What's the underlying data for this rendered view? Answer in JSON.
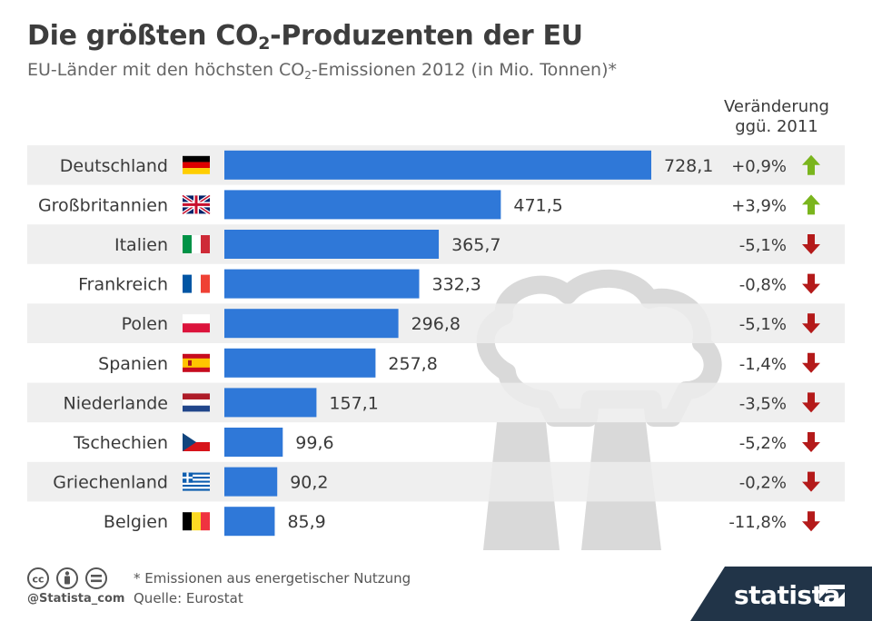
{
  "title_main": "Die größten CO",
  "title_sub": "2",
  "title_rest": "-Produzenten der EU",
  "subtitle_main": "EU-Länder mit den höchsten CO",
  "subtitle_sub": "2",
  "subtitle_rest": "-Emissionen 2012 (in Mio. Tonnen)*",
  "change_header_line1": "Veränderung",
  "change_header_line2": "ggü. 2011",
  "footnote": "* Emissionen aus energetischer Nutzung",
  "source": "Quelle: Eurostat",
  "credit": "@Statista_com",
  "brand": "statista",
  "colors": {
    "bar": "#2f78d8",
    "row_stripe": "#ececec",
    "arrow_up": "#7ab51d",
    "arrow_down": "#b41a1a",
    "background_art": "#d9d9d9",
    "footer_brand": "#213448"
  },
  "chart_data": {
    "type": "bar",
    "orientation": "horizontal",
    "categories": [
      "Deutschland",
      "Großbritannien",
      "Italien",
      "Frankreich",
      "Polen",
      "Spanien",
      "Niederlande",
      "Tschechien",
      "Griechenland",
      "Belgien"
    ],
    "values": [
      728.1,
      471.5,
      365.7,
      332.3,
      296.8,
      257.8,
      157.1,
      99.6,
      90.2,
      85.9
    ],
    "value_labels": [
      "728,1",
      "471,5",
      "365,7",
      "332,3",
      "296,8",
      "257,8",
      "157,1",
      "99,6",
      "90,2",
      "85,9"
    ],
    "changes": [
      "+0,9%",
      "+3,9%",
      "-5,1%",
      "-0,8%",
      "-5,1%",
      "-1,4%",
      "-3,5%",
      "-5,2%",
      "-0,2%",
      "-11,8%"
    ],
    "change_direction": [
      "up",
      "up",
      "down",
      "down",
      "down",
      "down",
      "down",
      "down",
      "down",
      "down"
    ],
    "flags": [
      "de",
      "gb",
      "it",
      "fr",
      "pl",
      "es",
      "nl",
      "cz",
      "gr",
      "be"
    ],
    "xlim": [
      0,
      728.1
    ],
    "grid": false,
    "legend": "none"
  }
}
